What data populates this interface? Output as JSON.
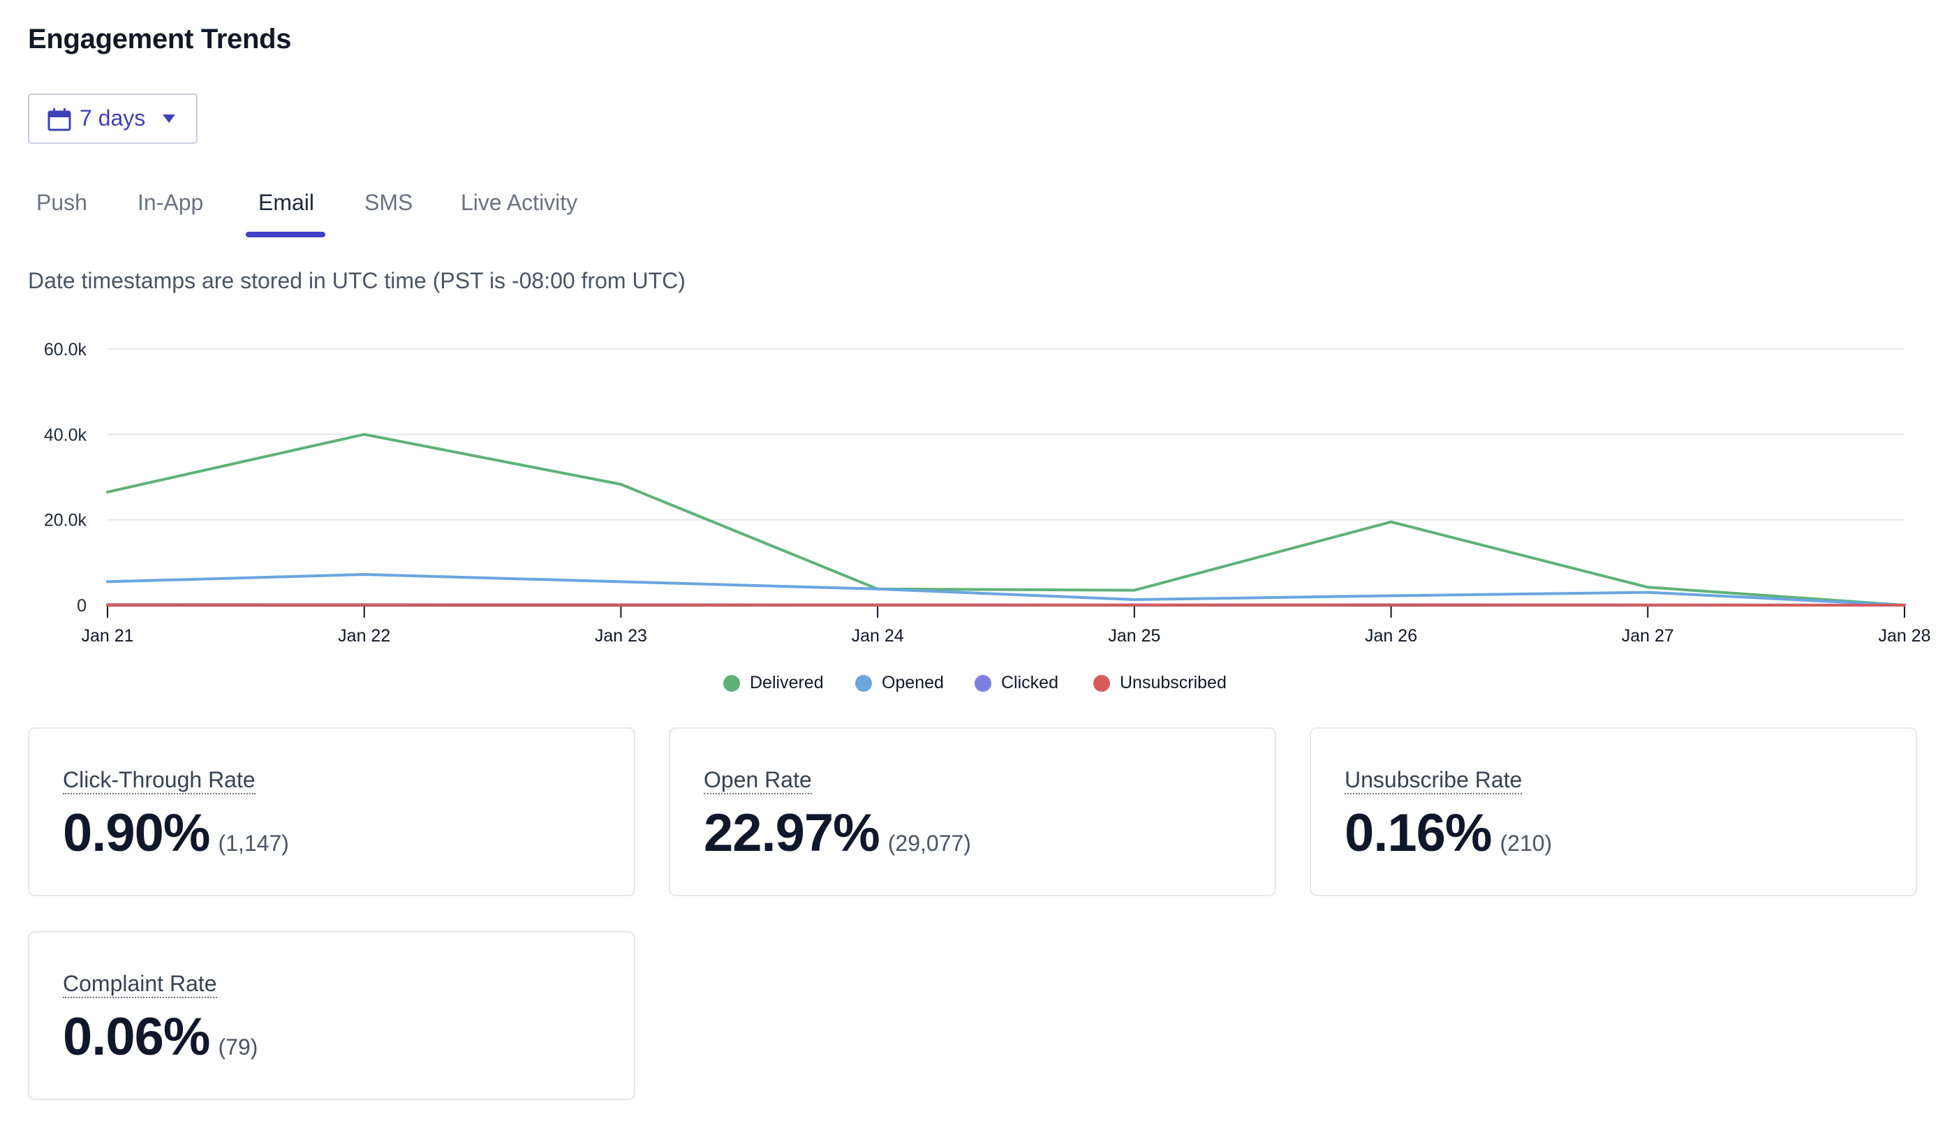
{
  "header": {
    "title": "Engagement Trends"
  },
  "range_selector": {
    "label": "7 days",
    "icon": "calendar-icon",
    "caret": "caret-down-icon"
  },
  "tabs": [
    {
      "label": "Push"
    },
    {
      "label": "In-App"
    },
    {
      "label": "Email",
      "active": true
    },
    {
      "label": "SMS"
    },
    {
      "label": "Live Activity"
    }
  ],
  "timezone_note": "Date timestamps are stored in UTC time (PST is -08:00 from UTC)",
  "chart_data": {
    "type": "line",
    "title": "",
    "xlabel": "",
    "ylabel": "",
    "categories": [
      "Jan 21",
      "Jan 22",
      "Jan 23",
      "Jan 24",
      "Jan 25",
      "Jan 26",
      "Jan 27",
      "Jan 28"
    ],
    "ylim": [
      0,
      60000
    ],
    "yticks": [
      0,
      20000,
      40000,
      60000
    ],
    "ytick_labels": [
      "0",
      "20.0k",
      "40.0k",
      "60.0k"
    ],
    "grid": true,
    "legend_position": "bottom",
    "series": [
      {
        "name": "Delivered",
        "color": "#5fb178",
        "values": [
          26500,
          40000,
          28300,
          3800,
          3500,
          19500,
          4200,
          0
        ]
      },
      {
        "name": "Opened",
        "color": "#6aa6e0",
        "values": [
          5500,
          7200,
          5500,
          3800,
          1300,
          2200,
          3000,
          0
        ]
      },
      {
        "name": "Clicked",
        "color": "#7b7fe0",
        "values": [
          150,
          120,
          100,
          80,
          60,
          90,
          70,
          0
        ]
      },
      {
        "name": "Unsubscribed",
        "color": "#d65c5c",
        "values": [
          30,
          40,
          30,
          20,
          15,
          25,
          20,
          0
        ]
      }
    ]
  },
  "stats": [
    {
      "title": "Click-Through Rate",
      "value": "0.90%",
      "count": "(1,147)"
    },
    {
      "title": "Open Rate",
      "value": "22.97%",
      "count": "(29,077)"
    },
    {
      "title": "Unsubscribe Rate",
      "value": "0.16%",
      "count": "(210)"
    },
    {
      "title": "Complaint Rate",
      "value": "0.06%",
      "count": "(79)"
    }
  ]
}
